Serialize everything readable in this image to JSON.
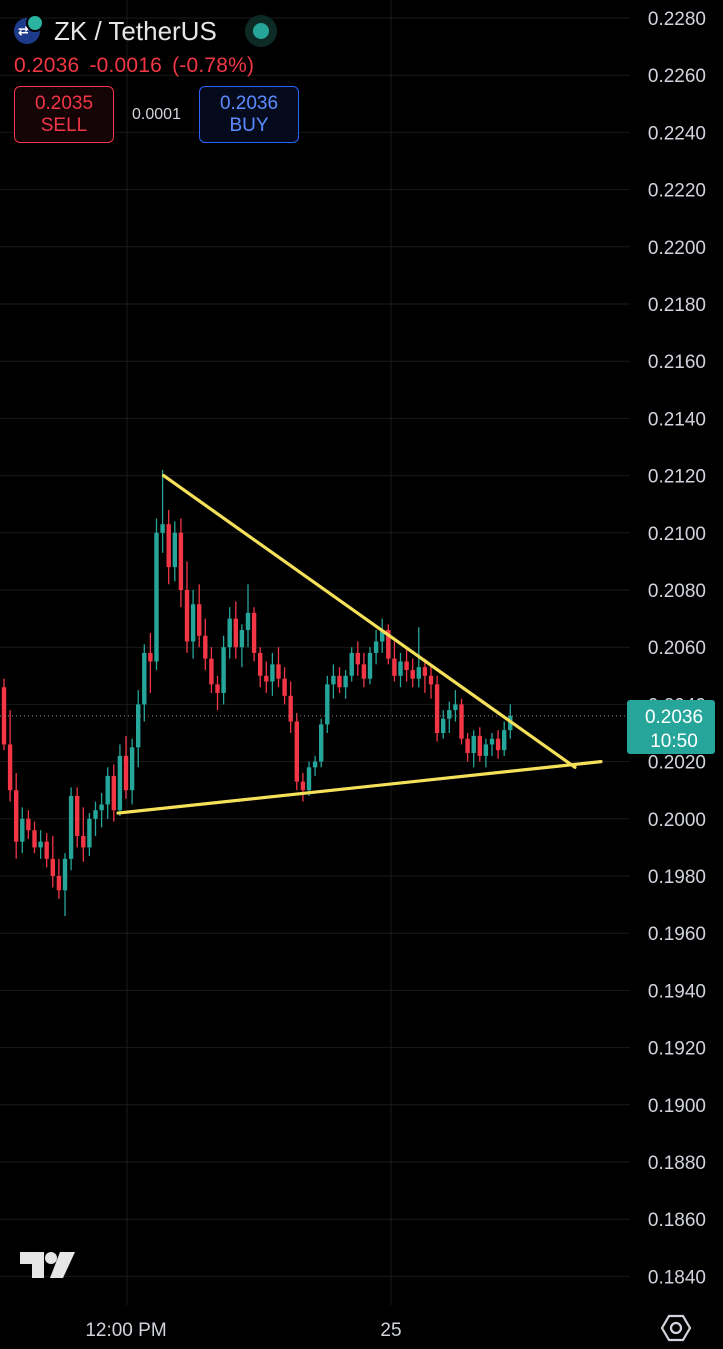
{
  "header": {
    "symbol": "ZK / TetherUS",
    "last": "0.2036",
    "change": "-0.0016",
    "change_pct": "(-0.78%)",
    "sell_price": "0.2035",
    "sell_label": "SELL",
    "spread": "0.0001",
    "buy_price": "0.2036",
    "buy_label": "BUY"
  },
  "price_tag": {
    "price": "0.2036",
    "countdown": "10:50"
  },
  "x_axis_labels": [
    "12:00 PM",
    "25"
  ],
  "colors": {
    "up": "#26a69a",
    "down": "#f23645",
    "trendline": "#f5e05a",
    "grid": "#1a1a1a",
    "tag": "#26a69a"
  },
  "icons": [
    "coin-icon",
    "live-status-icon",
    "tradingview-logo",
    "settings-icon"
  ],
  "chart_data": {
    "type": "candlestick",
    "ylim": [
      0.183,
      0.2285
    ],
    "y_ticks": [
      0.228,
      0.226,
      0.224,
      0.222,
      0.22,
      0.218,
      0.216,
      0.214,
      0.212,
      0.21,
      0.208,
      0.206,
      0.204,
      0.202,
      0.2,
      0.198,
      0.196,
      0.194,
      0.192,
      0.19,
      0.188,
      0.186,
      0.184
    ],
    "candles": [
      [
        0.2046,
        0.2049,
        0.2024,
        0.2026
      ],
      [
        0.2026,
        0.2038,
        0.2006,
        0.201
      ],
      [
        0.201,
        0.2016,
        0.1986,
        0.1992
      ],
      [
        0.1992,
        0.2004,
        0.1988,
        0.2
      ],
      [
        0.2,
        0.2003,
        0.1993,
        0.1996
      ],
      [
        0.1996,
        0.1999,
        0.1988,
        0.199
      ],
      [
        0.199,
        0.1996,
        0.1986,
        0.1992
      ],
      [
        0.1992,
        0.1995,
        0.1983,
        0.1986
      ],
      [
        0.1986,
        0.1994,
        0.1976,
        0.198
      ],
      [
        0.198,
        0.1986,
        0.1972,
        0.1975
      ],
      [
        0.1975,
        0.1988,
        0.1966,
        0.1986
      ],
      [
        0.1986,
        0.2011,
        0.1982,
        0.2008
      ],
      [
        0.2008,
        0.2011,
        0.199,
        0.1994
      ],
      [
        0.1994,
        0.2004,
        0.1985,
        0.199
      ],
      [
        0.199,
        0.2002,
        0.1987,
        0.2
      ],
      [
        0.2,
        0.2006,
        0.1994,
        0.2003
      ],
      [
        0.2003,
        0.2009,
        0.1997,
        0.2005
      ],
      [
        0.2005,
        0.2018,
        0.2,
        0.2015
      ],
      [
        0.2015,
        0.2019,
        0.1999,
        0.2003
      ],
      [
        0.2003,
        0.2026,
        0.2001,
        0.2022
      ],
      [
        0.2022,
        0.2029,
        0.2007,
        0.201
      ],
      [
        0.201,
        0.2028,
        0.2005,
        0.2025
      ],
      [
        0.2025,
        0.2045,
        0.2018,
        0.204
      ],
      [
        0.204,
        0.2061,
        0.2034,
        0.2058
      ],
      [
        0.2058,
        0.2065,
        0.2044,
        0.2055
      ],
      [
        0.2055,
        0.2105,
        0.2052,
        0.21
      ],
      [
        0.21,
        0.2122,
        0.2093,
        0.2103
      ],
      [
        0.2103,
        0.2108,
        0.2082,
        0.2088
      ],
      [
        0.2088,
        0.2104,
        0.2083,
        0.21
      ],
      [
        0.21,
        0.2105,
        0.2074,
        0.208
      ],
      [
        0.208,
        0.209,
        0.2058,
        0.2062
      ],
      [
        0.2062,
        0.208,
        0.2056,
        0.2075
      ],
      [
        0.2075,
        0.2082,
        0.206,
        0.2064
      ],
      [
        0.2064,
        0.207,
        0.2052,
        0.2056
      ],
      [
        0.2056,
        0.206,
        0.2044,
        0.2047
      ],
      [
        0.2047,
        0.205,
        0.2038,
        0.2044
      ],
      [
        0.2044,
        0.2064,
        0.204,
        0.206
      ],
      [
        0.206,
        0.2074,
        0.2056,
        0.207
      ],
      [
        0.207,
        0.2076,
        0.2056,
        0.206
      ],
      [
        0.206,
        0.2068,
        0.2053,
        0.2066
      ],
      [
        0.2066,
        0.2082,
        0.206,
        0.2072
      ],
      [
        0.2072,
        0.2074,
        0.2055,
        0.2058
      ],
      [
        0.2058,
        0.206,
        0.2046,
        0.205
      ],
      [
        0.205,
        0.2055,
        0.2044,
        0.2048
      ],
      [
        0.2048,
        0.2058,
        0.2043,
        0.2054
      ],
      [
        0.2054,
        0.206,
        0.2046,
        0.2049
      ],
      [
        0.2049,
        0.2053,
        0.204,
        0.2043
      ],
      [
        0.2043,
        0.2048,
        0.203,
        0.2034
      ],
      [
        0.2034,
        0.2037,
        0.201,
        0.2013
      ],
      [
        0.2013,
        0.2016,
        0.2006,
        0.201
      ],
      [
        0.201,
        0.202,
        0.2008,
        0.2018
      ],
      [
        0.2018,
        0.2022,
        0.2015,
        0.202
      ],
      [
        0.202,
        0.2035,
        0.2018,
        0.2033
      ],
      [
        0.2033,
        0.205,
        0.203,
        0.2047
      ],
      [
        0.2047,
        0.2054,
        0.2042,
        0.205
      ],
      [
        0.205,
        0.2053,
        0.2044,
        0.2046
      ],
      [
        0.2046,
        0.2052,
        0.2042,
        0.205
      ],
      [
        0.205,
        0.206,
        0.2048,
        0.2058
      ],
      [
        0.2058,
        0.2062,
        0.205,
        0.2054
      ],
      [
        0.2054,
        0.2058,
        0.2046,
        0.2049
      ],
      [
        0.2049,
        0.206,
        0.2047,
        0.2058
      ],
      [
        0.2058,
        0.2066,
        0.2054,
        0.2062
      ],
      [
        0.2062,
        0.207,
        0.2058,
        0.2066
      ],
      [
        0.2066,
        0.2068,
        0.2054,
        0.2056
      ],
      [
        0.2056,
        0.2062,
        0.2048,
        0.205
      ],
      [
        0.205,
        0.2058,
        0.2046,
        0.2055
      ],
      [
        0.2055,
        0.206,
        0.2048,
        0.2052
      ],
      [
        0.2052,
        0.2056,
        0.2046,
        0.2049
      ],
      [
        0.2049,
        0.2067,
        0.2046,
        0.2053
      ],
      [
        0.2053,
        0.2056,
        0.2044,
        0.205
      ],
      [
        0.205,
        0.2054,
        0.2042,
        0.2047
      ],
      [
        0.2047,
        0.205,
        0.2027,
        0.203
      ],
      [
        0.203,
        0.2038,
        0.2028,
        0.2035
      ],
      [
        0.2035,
        0.2041,
        0.203,
        0.2038
      ],
      [
        0.2038,
        0.2045,
        0.2034,
        0.204
      ],
      [
        0.204,
        0.2042,
        0.2026,
        0.2028
      ],
      [
        0.2028,
        0.203,
        0.202,
        0.2023
      ],
      [
        0.2023,
        0.2031,
        0.2018,
        0.2029
      ],
      [
        0.2029,
        0.2032,
        0.202,
        0.2022
      ],
      [
        0.2022,
        0.2028,
        0.2018,
        0.2026
      ],
      [
        0.2026,
        0.203,
        0.2022,
        0.2028
      ],
      [
        0.2028,
        0.2031,
        0.2021,
        0.2024
      ],
      [
        0.2024,
        0.2034,
        0.2022,
        0.2031
      ],
      [
        0.2031,
        0.204,
        0.2028,
        0.2036
      ]
    ],
    "trendlines": [
      {
        "name": "resistance",
        "points": [
          [
            "c26",
            0.212
          ],
          [
            "apex",
            0.2018
          ]
        ]
      },
      {
        "name": "support",
        "points": [
          [
            "c20",
            0.2002
          ],
          [
            "end",
            0.202
          ]
        ]
      }
    ],
    "current_price_line": 0.2036
  }
}
